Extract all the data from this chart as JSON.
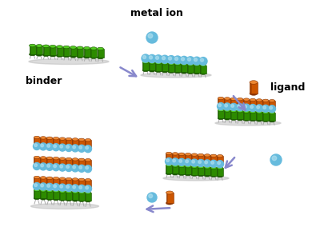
{
  "bg_color": "#ffffff",
  "green_color": "#2d8b00",
  "green_light": "#55cc22",
  "green_dark": "#1a5500",
  "orange_color": "#cc5500",
  "orange_light": "#ee8833",
  "orange_dark": "#883300",
  "cyan_color": "#66bbdd",
  "cyan_light": "#aaddee",
  "cyan_dark": "#3388aa",
  "stem_color": "#aaaaaa",
  "shadow_color": "#bbbbbb",
  "arrow_color": "#8888cc",
  "text_color": "#000000",
  "label_metal": "metal ion",
  "label_binder": "binder",
  "label_ligand": "ligand",
  "figsize": [
    4.0,
    2.89
  ],
  "dpi": 100
}
